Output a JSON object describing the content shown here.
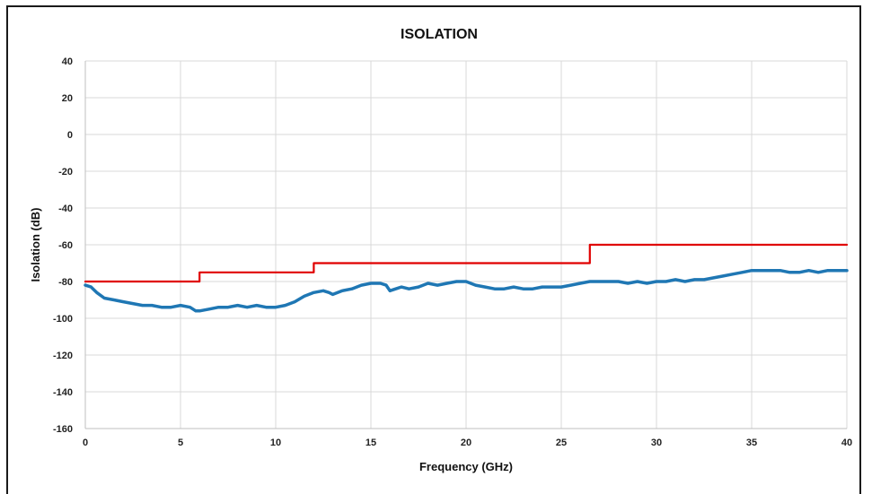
{
  "chart_data": {
    "type": "line",
    "title": "ISOLATION",
    "xlabel": "Frequency (GHz)",
    "ylabel": "Isolation (dB)",
    "xlim": [
      0,
      40
    ],
    "ylim": [
      -160,
      40
    ],
    "xticks": [
      0,
      5,
      10,
      15,
      20,
      25,
      30,
      35,
      40
    ],
    "yticks": [
      40,
      20,
      0,
      -20,
      -40,
      -60,
      -80,
      -100,
      -120,
      -140,
      -160
    ],
    "grid": true,
    "legend": "none",
    "series": [
      {
        "color": "#1f77b4",
        "step": false,
        "x": [
          0,
          0.3,
          0.6,
          1,
          1.5,
          2,
          2.5,
          3,
          3.5,
          4,
          4.5,
          5,
          5.5,
          5.8,
          6,
          6.5,
          7,
          7.5,
          8,
          8.5,
          9,
          9.5,
          10,
          10.5,
          11,
          11.5,
          12,
          12.5,
          12.8,
          13,
          13.5,
          14,
          14.5,
          15,
          15.5,
          15.8,
          16,
          16.3,
          16.6,
          17,
          17.5,
          18,
          18.5,
          19,
          19.5,
          20,
          20.5,
          21,
          21.5,
          22,
          22.5,
          23,
          23.5,
          24,
          24.5,
          25,
          25.5,
          26,
          26.5,
          27,
          27.5,
          28,
          28.5,
          29,
          29.5,
          30,
          30.5,
          31,
          31.5,
          32,
          32.5,
          33,
          33.5,
          34,
          34.5,
          35,
          35.5,
          36,
          36.5,
          37,
          37.5,
          38,
          38.5,
          39,
          39.5,
          40
        ],
        "y": [
          -82,
          -83,
          -86,
          -89,
          -90,
          -91,
          -92,
          -93,
          -93,
          -94,
          -94,
          -93,
          -94,
          -96,
          -96,
          -95,
          -94,
          -94,
          -93,
          -94,
          -93,
          -94,
          -94,
          -93,
          -91,
          -88,
          -86,
          -85,
          -86,
          -87,
          -85,
          -84,
          -82,
          -81,
          -81,
          -82,
          -85,
          -84,
          -83,
          -84,
          -83,
          -81,
          -82,
          -81,
          -80,
          -80,
          -82,
          -83,
          -84,
          -84,
          -83,
          -84,
          -84,
          -83,
          -83,
          -83,
          -82,
          -81,
          -80,
          -80,
          -80,
          -80,
          -81,
          -80,
          -81,
          -80,
          -80,
          -79,
          -80,
          -79,
          -79,
          -78,
          -77,
          -76,
          -75,
          -74,
          -74,
          -74,
          -74,
          -75,
          -75,
          -74,
          -75,
          -74,
          -74,
          -74
        ],
        "stroke_width_hint": "thick"
      },
      {
        "color": "#e00000",
        "step": true,
        "x": [
          0,
          6,
          6,
          12,
          12,
          26.5,
          26.5,
          40
        ],
        "y": [
          -80,
          -80,
          -75,
          -75,
          -70,
          -70,
          -60,
          -60
        ]
      }
    ]
  }
}
